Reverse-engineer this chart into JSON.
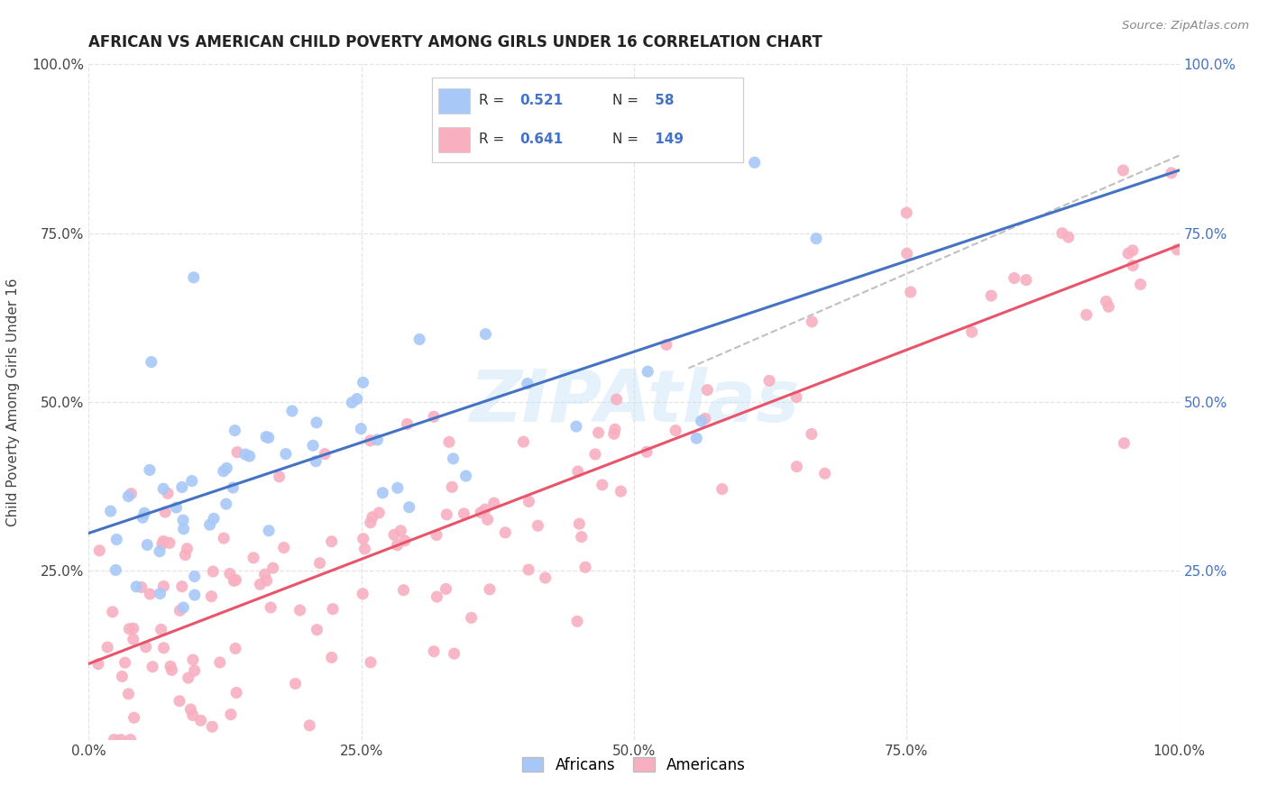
{
  "title": "AFRICAN VS AMERICAN CHILD POVERTY AMONG GIRLS UNDER 16 CORRELATION CHART",
  "source": "Source: ZipAtlas.com",
  "ylabel": "Child Poverty Among Girls Under 16",
  "africans_color": "#a8c8f8",
  "americans_color": "#f8b0c0",
  "africans_R": 0.521,
  "africans_N": 58,
  "americans_R": 0.641,
  "americans_N": 149,
  "africans_line_color": "#4472c4",
  "americans_line_color": "#e8546a",
  "dashed_line_color": "#b0b0b0",
  "legend_label_africans": "Africans",
  "legend_label_americans": "Americans",
  "watermark": "ZIPAtlas",
  "background_color": "#ffffff",
  "africans_seed": 42,
  "americans_seed": 99
}
